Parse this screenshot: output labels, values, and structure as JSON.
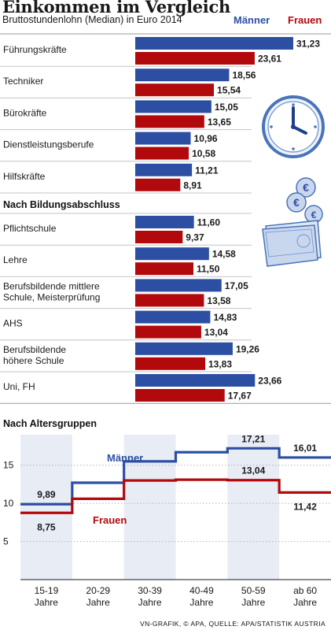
{
  "title": "Einkommen im Vergleich",
  "subtitle": "Bruttostundenlohn (Median) in Euro 2014",
  "legend": {
    "men": "Männer",
    "women": "Frauen"
  },
  "colors": {
    "men": "#2d4fa3",
    "women": "#b2090c"
  },
  "credit": "VN-GRAFIK, © APA, QUELLE: APA/STATISTIK AUSTRIA",
  "chart_data": [
    {
      "type": "bar",
      "orientation": "horizontal",
      "series_names": [
        "Männer",
        "Frauen"
      ],
      "groups": [
        {
          "heading": "",
          "categories": [
            "Führungskräfte",
            "Techniker",
            "Bürokräfte",
            "Dienstleistungsberufe",
            "Hilfskräfte"
          ],
          "series": [
            {
              "name": "Männer",
              "values": [
                31.23,
                18.56,
                15.05,
                10.96,
                11.21
              ],
              "labels": [
                "31,23",
                "18,56",
                "15,05",
                "10,96",
                "11,21"
              ]
            },
            {
              "name": "Frauen",
              "values": [
                23.61,
                15.54,
                13.65,
                10.58,
                8.91
              ],
              "labels": [
                "23,61",
                "15,54",
                "13,65",
                "10,58",
                "8,91"
              ]
            }
          ]
        },
        {
          "heading": "Nach Bildungsabschluss",
          "categories": [
            "Pflichtschule",
            "Lehre",
            "Berufsbildende mittlere|Schule, Meisterprüfung",
            "AHS",
            "Berufsbildende|höhere Schule",
            "Uni, FH"
          ],
          "series": [
            {
              "name": "Männer",
              "values": [
                11.6,
                14.58,
                17.05,
                14.83,
                19.26,
                23.66
              ],
              "labels": [
                "11,60",
                "14,58",
                "17,05",
                "14,83",
                "19,26",
                "23,66"
              ]
            },
            {
              "name": "Frauen",
              "values": [
                9.37,
                11.5,
                13.58,
                13.04,
                13.83,
                17.67
              ],
              "labels": [
                "9,37",
                "11,50",
                "13,58",
                "13,04",
                "13,83",
                "17,67"
              ]
            }
          ]
        }
      ]
    },
    {
      "type": "line",
      "step": true,
      "title": "Nach Altersgruppen",
      "categories": [
        "15-19|Jahre",
        "20-29|Jahre",
        "30-39|Jahre",
        "40-49|Jahre",
        "50-59|Jahre",
        "ab 60|Jahre"
      ],
      "ylim": [
        0,
        19
      ],
      "yticks": [
        5,
        10,
        15
      ],
      "series": [
        {
          "name": "Männer",
          "values": [
            9.89,
            12.7,
            15.5,
            16.7,
            17.21,
            16.01
          ]
        },
        {
          "name": "Frauen",
          "values": [
            8.75,
            10.6,
            13.0,
            13.1,
            13.04,
            11.42
          ]
        }
      ],
      "annotations": [
        {
          "series": "Männer",
          "index": 0,
          "text": "9,89"
        },
        {
          "series": "Frauen",
          "index": 0,
          "text": "8,75"
        },
        {
          "series": "Männer",
          "index": 4,
          "text": "17,21"
        },
        {
          "series": "Männer",
          "index": 5,
          "text": "16,01"
        },
        {
          "series": "Frauen",
          "index": 4,
          "text": "13,04"
        },
        {
          "series": "Frauen",
          "index": 5,
          "text": "11,42"
        }
      ]
    }
  ]
}
